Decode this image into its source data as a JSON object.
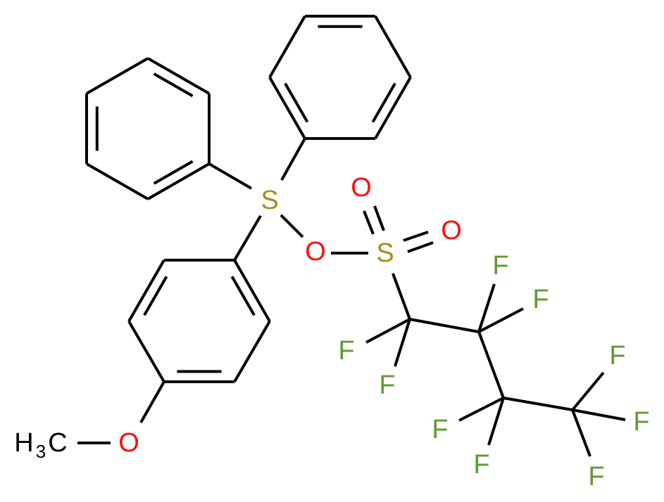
{
  "colors": {
    "bond": "#000000",
    "S": "#ad8a1c",
    "O": "#ff0d0d",
    "F": "#5f9b35",
    "C": "#000000"
  },
  "atoms": {
    "s_sulfonium": "S",
    "o_ester": "O",
    "s_sulfonyl": "S",
    "o_sulfonyl_1": "O",
    "o_sulfonyl_2": "O",
    "o_methoxy": "O",
    "methyl": {
      "h": "H",
      "sub": "3",
      "c": "C"
    },
    "fluorines": [
      "F",
      "F",
      "F",
      "F",
      "F",
      "F",
      "F",
      "F",
      "F"
    ]
  }
}
